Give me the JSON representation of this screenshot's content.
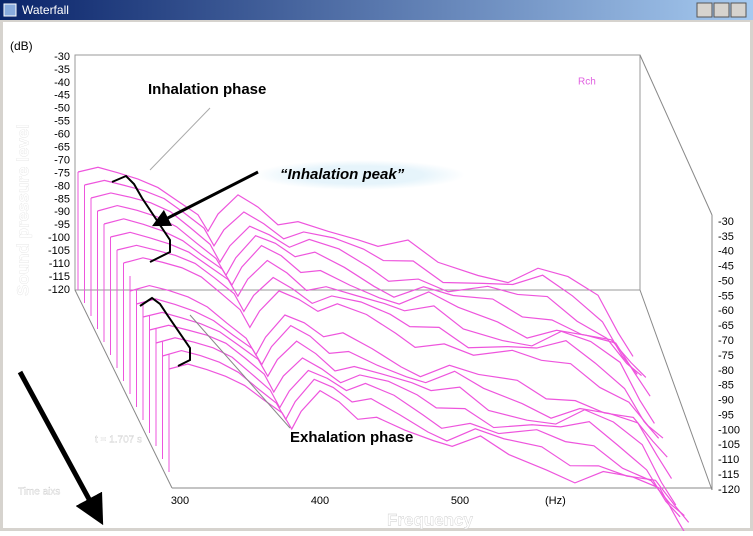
{
  "window": {
    "title": "Waterfall"
  },
  "plot": {
    "unit_label": "(dB)",
    "y_axis_title": "Sound pressure level",
    "left_ticks": [
      "-30",
      "-35",
      "-40",
      "-45",
      "-50",
      "-55",
      "-60",
      "-65",
      "-70",
      "-75",
      "-80",
      "-85",
      "-90",
      "-95",
      "-100",
      "-105",
      "-110",
      "-115",
      "-120"
    ],
    "right_ticks": [
      "-30",
      "-35",
      "-40",
      "-45",
      "-50",
      "-55",
      "-60",
      "-65",
      "-70",
      "-75",
      "-80",
      "-85",
      "-90",
      "-95",
      "-100",
      "-105",
      "-110",
      "-115",
      "-120"
    ],
    "x_ticks": [
      "300",
      "400",
      "500"
    ],
    "x_unit": "(Hz)",
    "x_axis_title": "Frequency",
    "channel": "Rch",
    "time_label": "t = 1.707 s",
    "time_axis_label": "Time aixs"
  },
  "annotations": {
    "inhalation_phase": "Inhalation phase",
    "inhalation_peak": "“Inhalation peak”",
    "exhalation_phase": "Exhalation phase"
  }
}
